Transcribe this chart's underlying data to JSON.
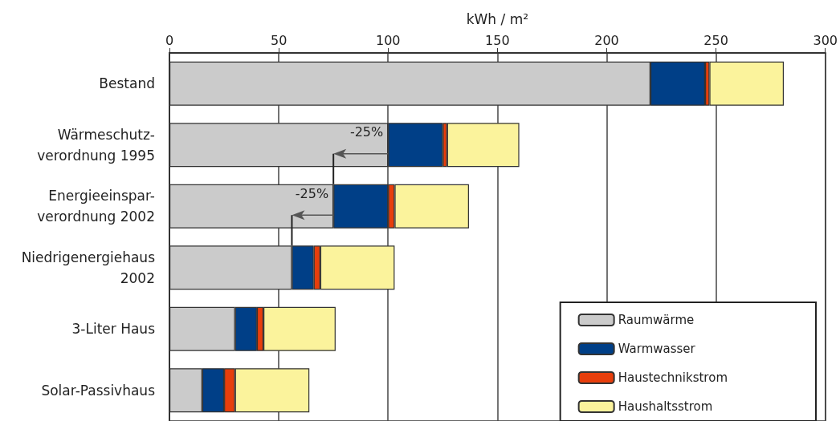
{
  "chart_data": {
    "type": "bar",
    "orientation": "horizontal",
    "stacked": true,
    "xlabel": "kWh / m²",
    "categories": [
      "Bestand",
      "Wärmeschutz-\nverordnung 1995",
      "Energieeinspar-\nverordnung 2002",
      "Niedrigenergiehaus\n2002",
      "3-Liter Haus",
      "Solar-Passivhaus"
    ],
    "series": [
      {
        "name": "Raumwärme",
        "color": "#cbcbcb",
        "values": [
          220,
          100,
          75,
          56,
          30,
          15
        ]
      },
      {
        "name": "Warmwasser",
        "color": "#003f87",
        "values": [
          25,
          25,
          25,
          10,
          10,
          10
        ]
      },
      {
        "name": "Haustechnikstrom",
        "color": "#e73e0c",
        "values": [
          2,
          2,
          3,
          3,
          3,
          5
        ]
      },
      {
        "name": "Haushaltsstrom",
        "color": "#fbf39c",
        "values": [
          34,
          33,
          34,
          34,
          33,
          34
        ]
      }
    ],
    "xlim": [
      0,
      300
    ],
    "xticks": [
      0,
      50,
      100,
      150,
      200,
      250,
      300
    ],
    "grid": "x",
    "legend": "bottom right",
    "annotations": [
      {
        "text": "-25%",
        "x": 100,
        "y": "Wärmeschutz-\nverordnung 1995"
      },
      {
        "text": "-25%",
        "x": 75,
        "y": "Energieeinspar-\nverordnung 2002"
      }
    ]
  }
}
